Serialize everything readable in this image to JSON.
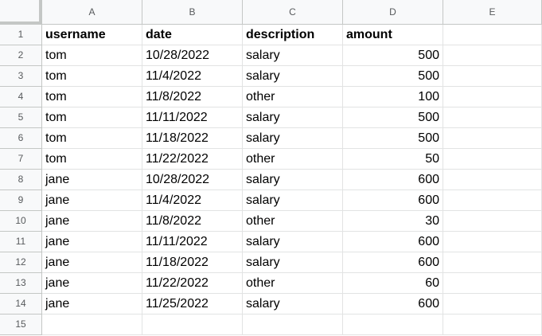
{
  "columns": [
    "A",
    "B",
    "C",
    "D",
    "E"
  ],
  "row_numbers": [
    "1",
    "2",
    "3",
    "4",
    "5",
    "6",
    "7",
    "8",
    "9",
    "10",
    "11",
    "12",
    "13",
    "14",
    "15"
  ],
  "header_row": [
    "username",
    "date",
    "description",
    "amount",
    ""
  ],
  "rows": [
    [
      "tom",
      "10/28/2022",
      "salary",
      "500"
    ],
    [
      "tom",
      "11/4/2022",
      "salary",
      "500"
    ],
    [
      "tom",
      "11/8/2022",
      "other",
      "100"
    ],
    [
      "tom",
      "11/11/2022",
      "salary",
      "500"
    ],
    [
      "tom",
      "11/18/2022",
      "salary",
      "500"
    ],
    [
      "tom",
      "11/22/2022",
      "other",
      "50"
    ],
    [
      "jane",
      "10/28/2022",
      "salary",
      "600"
    ],
    [
      "jane",
      "11/4/2022",
      "salary",
      "600"
    ],
    [
      "jane",
      "11/8/2022",
      "other",
      "30"
    ],
    [
      "jane",
      "11/11/2022",
      "salary",
      "600"
    ],
    [
      "jane",
      "11/18/2022",
      "salary",
      "600"
    ],
    [
      "jane",
      "11/22/2022",
      "other",
      "60"
    ],
    [
      "jane",
      "11/25/2022",
      "salary",
      "600"
    ]
  ]
}
